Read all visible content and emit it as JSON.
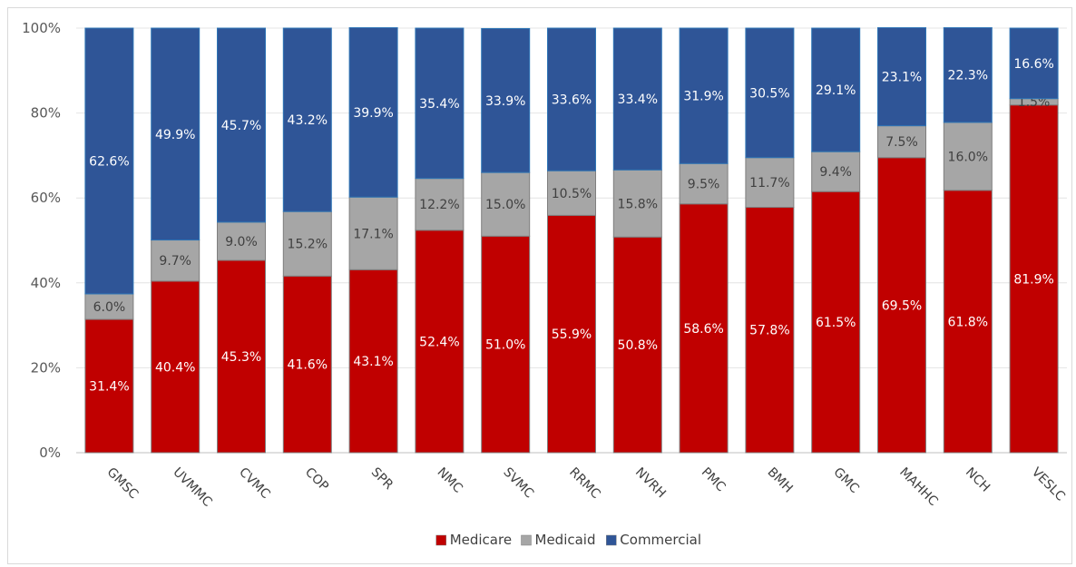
{
  "chart_data": {
    "type": "bar",
    "stacked": true,
    "percent": true,
    "categories": [
      "GMSC",
      "UVMMC",
      "CVMC",
      "COP",
      "SPR",
      "NMC",
      "SVMC",
      "RRMC",
      "NVRH",
      "PMC",
      "BMH",
      "GMC",
      "MAHHC",
      "NCH",
      "VESLC"
    ],
    "series": [
      {
        "name": "Medicare",
        "color": "#c00000",
        "label_color": "#ffffff",
        "values": [
          31.4,
          40.4,
          45.3,
          41.6,
          43.1,
          52.4,
          51.0,
          55.9,
          50.8,
          58.6,
          57.8,
          61.5,
          69.5,
          61.8,
          81.9
        ],
        "labels": [
          "31.4%",
          "40.4%",
          "45.3%",
          "41.6%",
          "43.1%",
          "52.4%",
          "51.0%",
          "55.9%",
          "50.8%",
          "58.6%",
          "57.8%",
          "61.5%",
          "69.5%",
          "61.8%",
          "81.9%"
        ]
      },
      {
        "name": "Medicaid",
        "color": "#a6a6a6",
        "label_color": "#404040",
        "values": [
          6.0,
          9.7,
          9.0,
          15.2,
          17.1,
          12.2,
          15.0,
          10.5,
          15.8,
          9.5,
          11.7,
          9.4,
          7.5,
          16.0,
          1.5
        ],
        "labels": [
          "6.0%",
          "9.7%",
          "9.0%",
          "15.2%",
          "17.1%",
          "12.2%",
          "15.0%",
          "10.5%",
          "15.8%",
          "9.5%",
          "11.7%",
          "9.4%",
          "7.5%",
          "16.0%",
          "1.5%"
        ]
      },
      {
        "name": "Commercial",
        "color": "#2f5597",
        "label_color": "#ffffff",
        "values": [
          62.6,
          49.9,
          45.7,
          43.2,
          39.9,
          35.4,
          33.9,
          33.6,
          33.4,
          31.9,
          30.5,
          29.1,
          23.1,
          22.3,
          16.6
        ],
        "labels": [
          "62.6%",
          "49.9%",
          "45.7%",
          "43.2%",
          "39.9%",
          "35.4%",
          "33.9%",
          "33.6%",
          "33.4%",
          "31.9%",
          "30.5%",
          "29.1%",
          "23.1%",
          "22.3%",
          "16.6%"
        ]
      }
    ],
    "y_ticks": [
      "0%",
      "20%",
      "40%",
      "60%",
      "80%",
      "100%"
    ],
    "ylim": [
      0,
      100
    ],
    "grid": true,
    "legend_position": "bottom",
    "title": "",
    "xlabel": "",
    "ylabel": ""
  }
}
